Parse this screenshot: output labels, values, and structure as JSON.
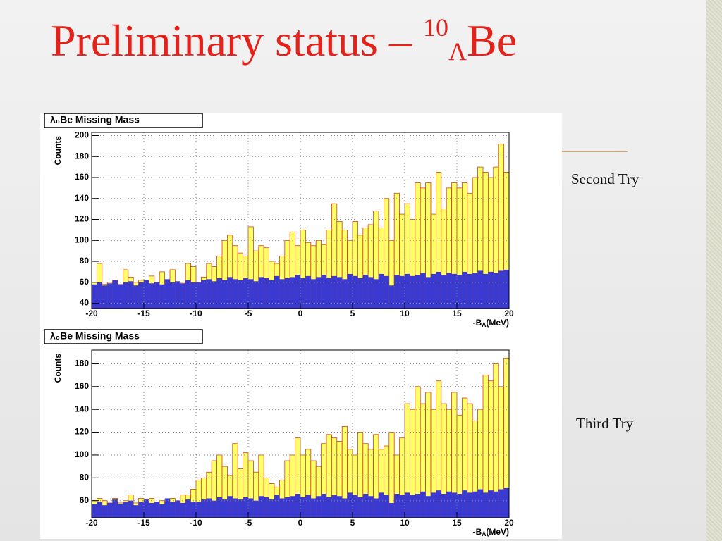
{
  "slide": {
    "title": {
      "main": "Preliminary status – ",
      "sup": "10",
      "sub": "Λ",
      "tail": "Be"
    },
    "captions": [
      "Second Try",
      "Third Try"
    ]
  },
  "chart_data": [
    {
      "type": "histogram",
      "title": "λ₀Be Missing Mass",
      "ylabel": "Counts",
      "xlabel": {
        "main": "-B",
        "sub": "Λ",
        "tail": "(MeV)"
      },
      "bins": [
        -20,
        -19.5,
        -19,
        -18.5,
        -18,
        -17.5,
        -17,
        -16.5,
        -16,
        -15.5,
        -15,
        -14.5,
        -14,
        -13.5,
        -13,
        -12.5,
        -12,
        -11.5,
        -11,
        -10.5,
        -10,
        -9.5,
        -9,
        -8.5,
        -8,
        -7.5,
        -7,
        -6.5,
        -6,
        -5.5,
        -5,
        -4.5,
        -4,
        -3.5,
        -3,
        -2.5,
        -2,
        -1.5,
        -1,
        -0.5,
        0,
        0.5,
        1,
        1.5,
        2,
        2.5,
        3,
        3.5,
        4,
        4.5,
        5,
        5.5,
        6,
        6.5,
        7,
        7.5,
        8,
        8.5,
        9,
        9.5,
        10,
        10.5,
        11,
        11.5,
        12,
        12.5,
        13,
        13.5,
        14,
        14.5,
        15,
        15.5,
        16,
        16.5,
        17,
        17.5,
        18,
        18.5,
        19,
        19.5,
        20
      ],
      "xlim": [
        -20,
        20
      ],
      "xticks": [
        -20,
        -15,
        -10,
        -5,
        0,
        5,
        10,
        15,
        20
      ],
      "ylim": [
        35,
        203
      ],
      "yticks": [
        40,
        60,
        80,
        100,
        120,
        140,
        160,
        180,
        200
      ],
      "grid": true,
      "series": [
        {
          "color": "#ffff66",
          "values": [
            60,
            78,
            58,
            60,
            62,
            58,
            72,
            65,
            60,
            62,
            60,
            66,
            58,
            70,
            62,
            72,
            55,
            60,
            78,
            75,
            60,
            65,
            78,
            75,
            85,
            100,
            105,
            95,
            88,
            85,
            113,
            90,
            95,
            93,
            80,
            78,
            85,
            100,
            108,
            95,
            110,
            98,
            95,
            100,
            96,
            110,
            135,
            118,
            110,
            100,
            118,
            105,
            112,
            115,
            128,
            112,
            140,
            100,
            145,
            125,
            135,
            120,
            155,
            150,
            155,
            125,
            165,
            130,
            150,
            155,
            150,
            155,
            145,
            160,
            170,
            165,
            160,
            170,
            192,
            165
          ]
        },
        {
          "color": "#3a3ad0",
          "values": [
            58,
            60,
            57,
            59,
            62,
            58,
            60,
            61,
            57,
            60,
            62,
            59,
            60,
            58,
            63,
            60,
            61,
            59,
            62,
            60,
            60,
            62,
            63,
            61,
            64,
            62,
            65,
            63,
            62,
            64,
            63,
            61,
            65,
            64,
            62,
            66,
            63,
            64,
            65,
            67,
            64,
            66,
            63,
            65,
            67,
            64,
            66,
            65,
            63,
            68,
            66,
            64,
            67,
            65,
            63,
            68,
            66,
            57,
            67,
            66,
            68,
            66,
            67,
            69,
            65,
            68,
            70,
            67,
            69,
            68,
            67,
            70,
            68,
            69,
            71,
            68,
            70,
            69,
            71,
            72
          ]
        }
      ]
    },
    {
      "type": "histogram",
      "title": "λ₀Be Missing Mass",
      "ylabel": "Counts",
      "xlabel": {
        "main": "-B",
        "sub": "Λ",
        "tail": "(MeV)"
      },
      "bins": [
        -20,
        -19.5,
        -19,
        -18.5,
        -18,
        -17.5,
        -17,
        -16.5,
        -16,
        -15.5,
        -15,
        -14.5,
        -14,
        -13.5,
        -13,
        -12.5,
        -12,
        -11.5,
        -11,
        -10.5,
        -10,
        -9.5,
        -9,
        -8.5,
        -8,
        -7.5,
        -7,
        -6.5,
        -6,
        -5.5,
        -5,
        -4.5,
        -4,
        -3.5,
        -3,
        -2.5,
        -2,
        -1.5,
        -1,
        -0.5,
        0,
        0.5,
        1,
        1.5,
        2,
        2.5,
        3,
        3.5,
        4,
        4.5,
        5,
        5.5,
        6,
        6.5,
        7,
        7.5,
        8,
        8.5,
        9,
        9.5,
        10,
        10.5,
        11,
        11.5,
        12,
        12.5,
        13,
        13.5,
        14,
        14.5,
        15,
        15.5,
        16,
        16.5,
        17,
        17.5,
        18,
        18.5,
        19,
        19.5,
        20
      ],
      "xlim": [
        -20,
        20
      ],
      "xticks": [
        -20,
        -15,
        -10,
        -5,
        0,
        5,
        10,
        15,
        20
      ],
      "ylim": [
        45,
        192
      ],
      "yticks": [
        60,
        80,
        100,
        120,
        140,
        160,
        180
      ],
      "grid": true,
      "series": [
        {
          "color": "#ffff66",
          "values": [
            60,
            62,
            60,
            58,
            62,
            58,
            60,
            65,
            58,
            62,
            60,
            62,
            58,
            60,
            58,
            62,
            60,
            65,
            65,
            70,
            78,
            80,
            85,
            95,
            100,
            90,
            82,
            110,
            88,
            102,
            95,
            85,
            100,
            80,
            75,
            72,
            78,
            95,
            100,
            115,
            100,
            105,
            95,
            90,
            110,
            118,
            115,
            112,
            125,
            105,
            100,
            120,
            110,
            105,
            118,
            105,
            108,
            120,
            100,
            115,
            145,
            140,
            160,
            145,
            155,
            140,
            165,
            145,
            140,
            155,
            135,
            150,
            145,
            130,
            140,
            170,
            165,
            180,
            160,
            185
          ]
        },
        {
          "color": "#3a3ad0",
          "values": [
            57,
            59,
            56,
            58,
            61,
            57,
            59,
            60,
            56,
            59,
            61,
            58,
            59,
            57,
            62,
            59,
            60,
            58,
            61,
            59,
            59,
            61,
            62,
            60,
            63,
            61,
            64,
            62,
            61,
            63,
            62,
            60,
            64,
            63,
            61,
            65,
            62,
            63,
            64,
            66,
            63,
            65,
            62,
            64,
            66,
            63,
            65,
            64,
            62,
            67,
            65,
            63,
            66,
            64,
            62,
            67,
            65,
            58,
            66,
            65,
            67,
            65,
            66,
            68,
            64,
            67,
            69,
            66,
            68,
            67,
            66,
            69,
            67,
            68,
            70,
            67,
            69,
            68,
            70,
            71
          ]
        }
      ]
    }
  ]
}
